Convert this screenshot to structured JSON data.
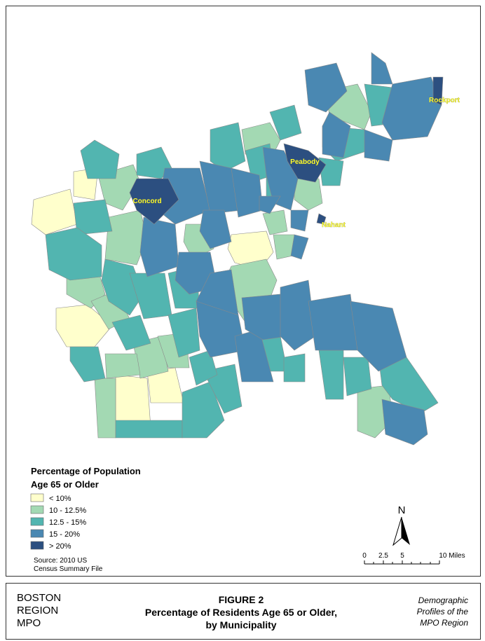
{
  "map": {
    "labels": [
      "Concord",
      "Peabody",
      "Nahant",
      "Rockport"
    ]
  },
  "legend": {
    "title": [
      "Percentage of Population",
      "Age 65 or Older"
    ],
    "items": [
      {
        "label": "< 10%",
        "color": "#ffffcc"
      },
      {
        "label": "10 - 12.5%",
        "color": "#a3d9b3"
      },
      {
        "label": "12.5 - 15%",
        "color": "#52b5b0"
      },
      {
        "label": "15 - 20%",
        "color": "#4a88b2"
      },
      {
        "label": "> 20%",
        "color": "#2c4f80"
      }
    ]
  },
  "source": [
    "Source:  2010 US",
    "Census Summary File"
  ],
  "north_arrow": "N",
  "scale_bar": [
    "0",
    "2.5",
    "5",
    "10 Miles"
  ],
  "footer": {
    "agency": [
      "BOSTON",
      "REGION",
      "MPO"
    ],
    "figure": "FIGURE 2",
    "title": [
      "Percentage of Residents Age 65 or Older,",
      "by Municipality"
    ],
    "series": [
      "Demographic",
      "Profiles of the",
      "MPO Region"
    ]
  }
}
